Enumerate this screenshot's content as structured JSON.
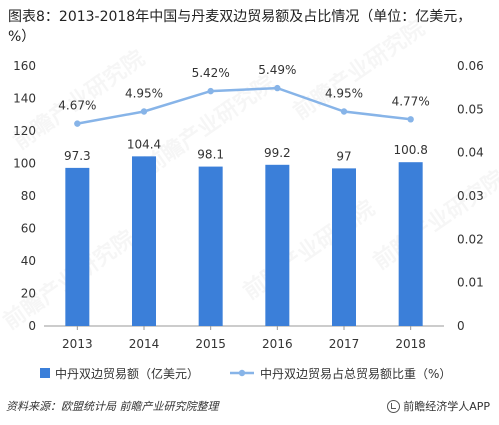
{
  "title": "图表8：2013-2018年中国与丹麦双边贸易额及占比情况（单位：亿美元，%）",
  "source": "资料来源：欧盟统计局 前瞻产业研究院整理",
  "brand": "前瞻经济学人APP",
  "watermark": "前瞻产业研究院",
  "colors": {
    "bar": "#3b7fd9",
    "line": "#87b4e8",
    "axis": "#999999"
  },
  "chart_data": {
    "type": "bar",
    "categories": [
      "2013",
      "2014",
      "2015",
      "2016",
      "2017",
      "2018"
    ],
    "series": [
      {
        "name": "中丹双边贸易额（亿美元）",
        "type": "bar",
        "axis": "left",
        "values": [
          97.3,
          104.4,
          98.1,
          99.2,
          97,
          100.8
        ],
        "labels": [
          "97.3",
          "104.4",
          "98.1",
          "99.2",
          "97",
          "100.8"
        ]
      },
      {
        "name": "中丹双边贸易占总贸易额比重（%）",
        "type": "line",
        "axis": "right",
        "values": [
          0.0467,
          0.0495,
          0.0542,
          0.0549,
          0.0495,
          0.0477
        ],
        "labels": [
          "4.67%",
          "4.95%",
          "5.42%",
          "5.49%",
          "4.95%",
          "4.77%"
        ]
      }
    ],
    "left_axis": {
      "ylim": [
        0,
        160
      ],
      "ticks": [
        "0",
        "20",
        "40",
        "60",
        "80",
        "100",
        "120",
        "140",
        "160"
      ]
    },
    "right_axis": {
      "ylim": [
        0,
        0.06
      ],
      "ticks": [
        "0",
        "0.01",
        "0.02",
        "0.03",
        "0.04",
        "0.05",
        "0.06"
      ]
    },
    "grid": false,
    "legend_position": "bottom"
  }
}
